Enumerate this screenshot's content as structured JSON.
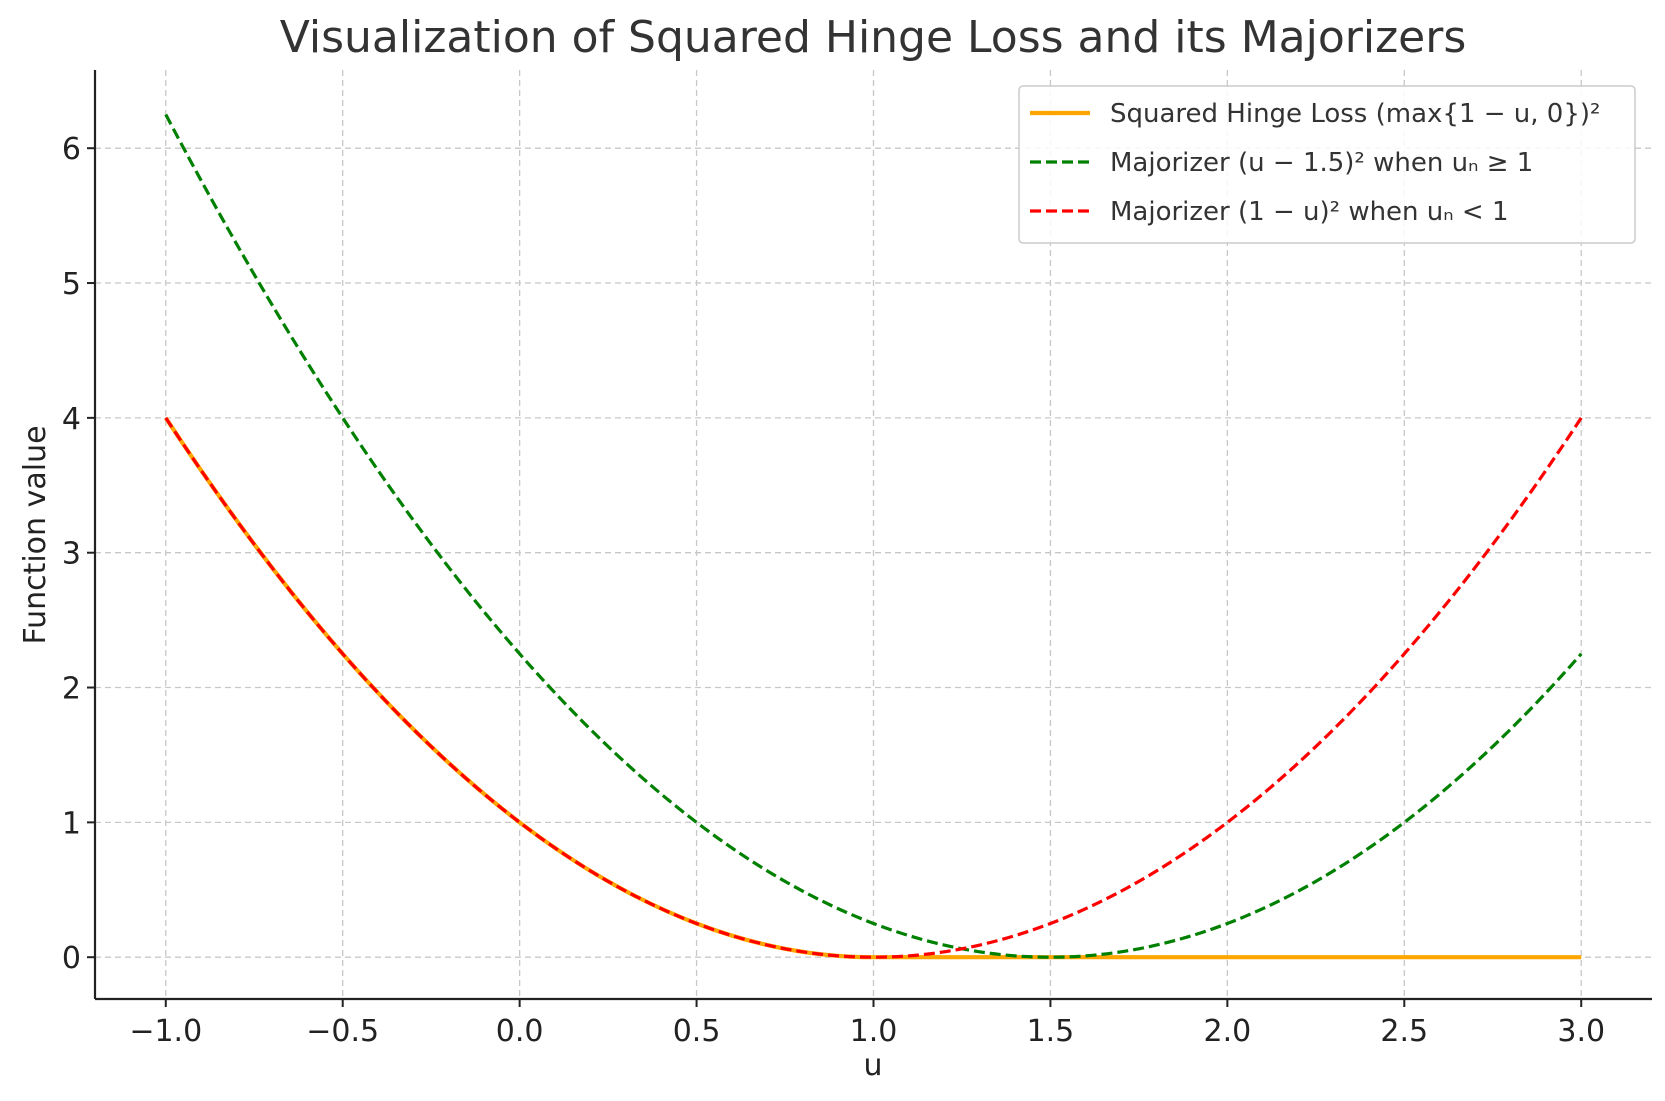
{
  "chart_data": {
    "type": "line",
    "title": "Visualization of Squared Hinge Loss and its Majorizers",
    "xlabel": "u",
    "ylabel": "Function value",
    "xlim": [
      -1.2,
      3.2
    ],
    "ylim": [
      -0.31,
      6.58
    ],
    "xticks": [
      -1.0,
      -0.5,
      0.0,
      0.5,
      1.0,
      1.5,
      2.0,
      2.5,
      3.0
    ],
    "xtick_labels": [
      "−1.0",
      "−0.5",
      "0.0",
      "0.5",
      "1.0",
      "1.5",
      "2.0",
      "2.5",
      "3.0"
    ],
    "yticks": [
      0,
      1,
      2,
      3,
      4,
      5,
      6
    ],
    "ytick_labels": [
      "0",
      "1",
      "2",
      "3",
      "4",
      "5",
      "6"
    ],
    "grid": true,
    "legend_position": "top-right",
    "x": [
      -1.0,
      -0.75,
      -0.5,
      -0.25,
      0.0,
      0.25,
      0.5,
      0.75,
      1.0,
      1.25,
      1.5,
      1.75,
      2.0,
      2.25,
      2.5,
      2.75,
      3.0
    ],
    "series": [
      {
        "name": "Squared Hinge Loss (max{1 − u, 0})²",
        "color": "#FFA500",
        "style": "solid",
        "values": [
          4.0,
          3.0625,
          2.25,
          1.5625,
          1.0,
          0.5625,
          0.25,
          0.0625,
          0.0,
          0.0,
          0.0,
          0.0,
          0.0,
          0.0,
          0.0,
          0.0,
          0.0
        ]
      },
      {
        "name": "Majorizer (u − 1.5)² when uₙ ≥ 1",
        "color": "#008000",
        "style": "dashed",
        "values": [
          6.25,
          5.0625,
          4.0,
          3.0625,
          2.25,
          1.5625,
          1.0,
          0.5625,
          0.25,
          0.0625,
          0.0,
          0.0625,
          0.25,
          0.5625,
          1.0,
          1.5625,
          2.25
        ]
      },
      {
        "name": "Majorizer (1 − u)² when uₙ < 1",
        "color": "#FF0000",
        "style": "dashed",
        "values": [
          4.0,
          3.0625,
          2.25,
          1.5625,
          1.0,
          0.5625,
          0.25,
          0.0625,
          0.0,
          0.0625,
          0.25,
          0.5625,
          1.0,
          1.5625,
          2.25,
          3.0625,
          4.0
        ]
      }
    ]
  }
}
